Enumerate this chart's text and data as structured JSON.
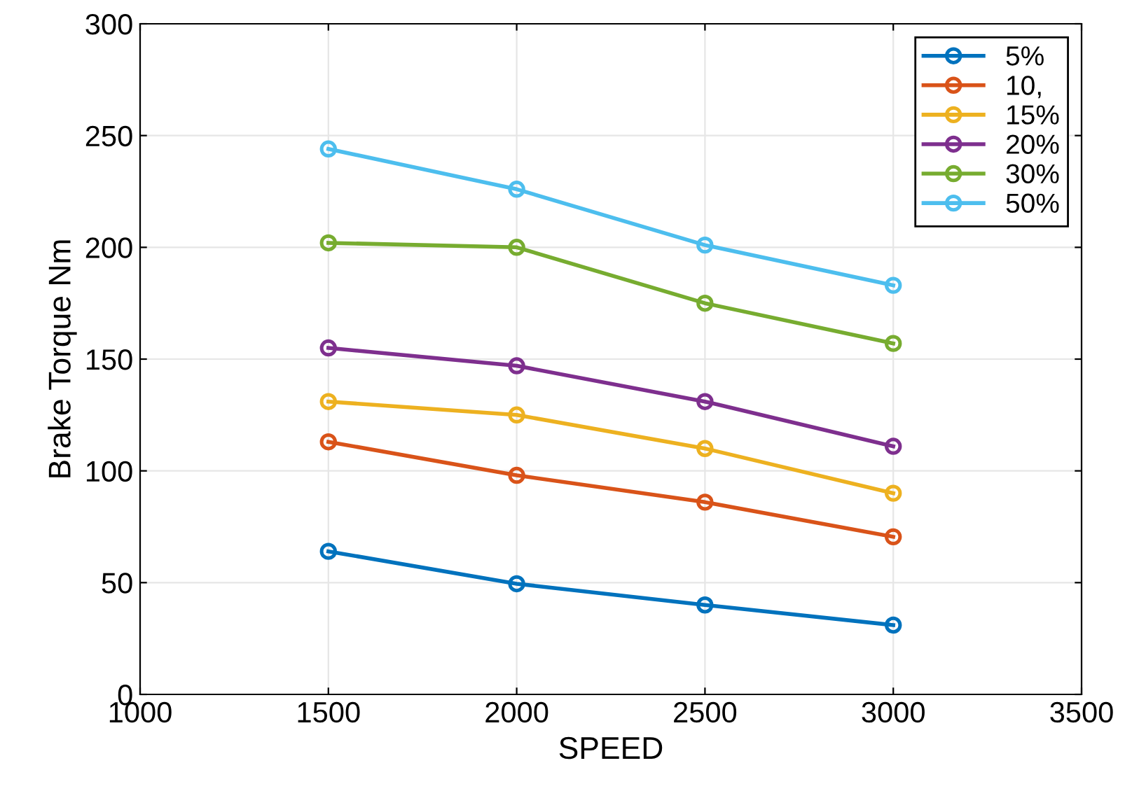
{
  "chart_data": {
    "type": "line",
    "xlabel": "SPEED",
    "ylabel": "Brake Torque Nm",
    "x": [
      1500,
      2000,
      2500,
      3000
    ],
    "series": [
      {
        "name": "5%",
        "color": "#0072bd",
        "values": [
          64,
          49.5,
          40,
          31
        ]
      },
      {
        "name": "10,",
        "color": "#d95319",
        "values": [
          113,
          98,
          86,
          70.5
        ]
      },
      {
        "name": "15%",
        "color": "#edb120",
        "values": [
          131,
          125,
          110,
          90
        ]
      },
      {
        "name": "20%",
        "color": "#7e2f8e",
        "values": [
          155,
          147,
          131,
          111
        ]
      },
      {
        "name": "30%",
        "color": "#77ac30",
        "values": [
          202,
          200,
          175,
          157
        ]
      },
      {
        "name": "50%",
        "color": "#4dbeee",
        "values": [
          244,
          226,
          201,
          183
        ]
      }
    ],
    "xlim": [
      1000,
      3500
    ],
    "xticks": [
      1000,
      1500,
      2000,
      2500,
      3000,
      3500
    ],
    "ylim": [
      0,
      300
    ],
    "yticks": [
      0,
      50,
      100,
      150,
      200,
      250,
      300
    ],
    "grid": true,
    "legend": "top right",
    "marker": "circle",
    "line_style": "solid"
  }
}
